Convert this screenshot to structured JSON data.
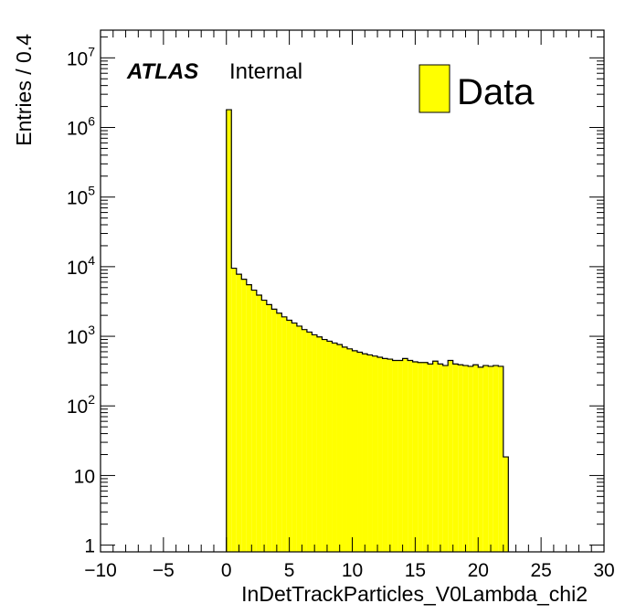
{
  "chart_data": {
    "type": "bar",
    "histogram": true,
    "xlabel": "InDetTrackParticles_V0Lambda_chi2",
    "ylabel": "Entries / 0.4",
    "xlim": [
      -10,
      30
    ],
    "ylim": [
      0.8,
      25000000
    ],
    "yscale": "log",
    "grid": false,
    "xticks": [
      -10,
      -5,
      0,
      5,
      10,
      15,
      20,
      25,
      30
    ],
    "xtick_labels": [
      "−10",
      "−5",
      "0",
      "5",
      "10",
      "15",
      "20",
      "25",
      "30"
    ],
    "yticks": [
      {
        "value": 1,
        "base": "1",
        "exp": ""
      },
      {
        "value": 10,
        "base": "10",
        "exp": ""
      },
      {
        "value": 100,
        "base": "10",
        "exp": "2"
      },
      {
        "value": 1000,
        "base": "10",
        "exp": "3"
      },
      {
        "value": 10000,
        "base": "10",
        "exp": "4"
      },
      {
        "value": 100000,
        "base": "10",
        "exp": "5"
      },
      {
        "value": 1000000,
        "base": "10",
        "exp": "6"
      },
      {
        "value": 10000000,
        "base": "10",
        "exp": "7"
      }
    ],
    "bin_width": 0.4,
    "bin_start": 0,
    "values": [
      1800000,
      9500,
      7800,
      6600,
      5500,
      4600,
      3900,
      3300,
      2850,
      2450,
      2150,
      1900,
      1700,
      1550,
      1400,
      1250,
      1150,
      1050,
      980,
      900,
      850,
      800,
      760,
      700,
      660,
      620,
      590,
      560,
      540,
      520,
      500,
      480,
      470,
      450,
      450,
      480,
      450,
      430,
      420,
      420,
      400,
      440,
      400,
      380,
      450,
      400,
      390,
      380,
      370,
      390,
      360,
      380,
      370,
      380,
      370,
      18.5
    ],
    "legend": [
      {
        "name": "Data",
        "color": "#ffff00"
      }
    ],
    "legend_position": "top-right",
    "annotations": {
      "experiment": "ATLAS",
      "status": "Internal"
    },
    "colors": {
      "fill": "#ffff00",
      "edge": "#000000"
    }
  }
}
